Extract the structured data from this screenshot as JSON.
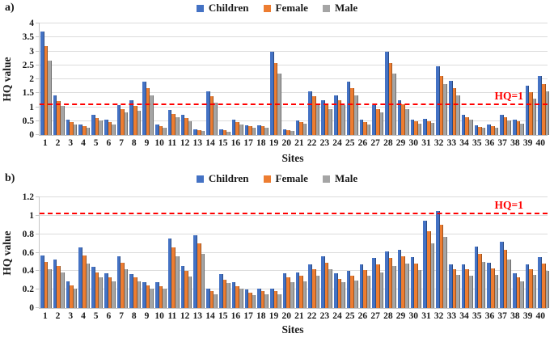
{
  "chart_data": [
    {
      "type": "bar",
      "title": "a)",
      "xlabel": "Sites",
      "ylabel": "HQ value",
      "ylim": [
        0,
        4
      ],
      "yticks": [
        "0",
        "0.5",
        "1",
        "1.5",
        "2",
        "2.5",
        "3",
        "3.5",
        "4"
      ],
      "grid": true,
      "legend_position": "top",
      "categories": [
        "1",
        "2",
        "3",
        "4",
        "5",
        "6",
        "7",
        "8",
        "9",
        "10",
        "11",
        "12",
        "13",
        "14",
        "15",
        "16",
        "17",
        "18",
        "19",
        "20",
        "21",
        "22",
        "23",
        "24",
        "25",
        "26",
        "27",
        "28",
        "29",
        "30",
        "31",
        "32",
        "33",
        "34",
        "35",
        "36",
        "37",
        "38",
        "39",
        "40"
      ],
      "series": [
        {
          "name": "Children",
          "color": "#4472C4",
          "values": [
            3.7,
            1.42,
            0.55,
            0.38,
            0.72,
            0.55,
            1.07,
            1.24,
            1.92,
            0.39,
            0.89,
            0.72,
            0.21,
            1.58,
            0.2,
            0.55,
            0.36,
            0.36,
            2.98,
            0.21,
            0.53,
            1.57,
            1.26,
            1.43,
            1.91,
            0.55,
            1.07,
            2.98,
            1.26,
            0.55,
            0.58,
            2.46,
            1.94,
            0.73,
            0.36,
            0.37,
            0.73,
            0.55,
            1.78,
            2.12
          ]
        },
        {
          "name": "Female",
          "color": "#ED7D31",
          "values": [
            3.18,
            1.22,
            0.46,
            0.32,
            0.61,
            0.46,
            0.92,
            1.05,
            1.67,
            0.32,
            0.76,
            0.61,
            0.17,
            1.38,
            0.17,
            0.47,
            0.31,
            0.31,
            2.59,
            0.17,
            0.47,
            1.38,
            1.1,
            1.24,
            1.67,
            0.46,
            0.92,
            2.59,
            1.1,
            0.49,
            0.5,
            2.12,
            1.67,
            0.63,
            0.3,
            0.31,
            0.63,
            0.48,
            1.53,
            1.84
          ]
        },
        {
          "name": "Male",
          "color": "#A5A5A5",
          "values": [
            2.68,
            1.05,
            0.39,
            0.27,
            0.51,
            0.39,
            0.8,
            0.88,
            1.43,
            0.27,
            0.63,
            0.5,
            0.14,
            1.17,
            0.13,
            0.39,
            0.26,
            0.25,
            2.2,
            0.14,
            0.41,
            1.14,
            0.92,
            1.07,
            1.43,
            0.39,
            0.8,
            2.21,
            0.92,
            0.42,
            0.44,
            1.82,
            1.41,
            0.55,
            0.26,
            0.26,
            0.53,
            0.42,
            1.31,
            1.57
          ]
        }
      ],
      "ref_line": {
        "label": "HQ=1",
        "value": 1,
        "color": "#ff0000"
      }
    },
    {
      "type": "bar",
      "title": "b)",
      "xlabel": "Sites",
      "ylabel": "HQ value",
      "ylim": [
        0,
        1.2
      ],
      "yticks": [
        "0",
        "0.2",
        "0.4",
        "0.6",
        "0.8",
        "1",
        "1.2"
      ],
      "grid": true,
      "legend_position": "top",
      "categories": [
        "1",
        "2",
        "3",
        "4",
        "5",
        "6",
        "7",
        "8",
        "9",
        "10",
        "11",
        "12",
        "13",
        "14",
        "15",
        "16",
        "17",
        "18",
        "19",
        "20",
        "21",
        "22",
        "23",
        "24",
        "25",
        "26",
        "27",
        "28",
        "29",
        "30",
        "31",
        "32",
        "33",
        "34",
        "35",
        "36",
        "37",
        "38",
        "39",
        "40"
      ],
      "series": [
        {
          "name": "Children",
          "color": "#4472C4",
          "values": [
            0.57,
            0.53,
            0.29,
            0.66,
            0.45,
            0.38,
            0.56,
            0.37,
            0.28,
            0.28,
            0.75,
            0.46,
            0.79,
            0.21,
            0.37,
            0.28,
            0.2,
            0.21,
            0.21,
            0.38,
            0.39,
            0.47,
            0.56,
            0.38,
            0.4,
            0.47,
            0.54,
            0.61,
            0.63,
            0.55,
            0.95,
            1.05,
            0.47,
            0.47,
            0.67,
            0.49,
            0.72,
            0.38,
            0.47,
            0.55
          ]
        },
        {
          "name": "Female",
          "color": "#ED7D31",
          "values": [
            0.5,
            0.46,
            0.25,
            0.57,
            0.39,
            0.33,
            0.49,
            0.33,
            0.25,
            0.24,
            0.66,
            0.4,
            0.7,
            0.18,
            0.31,
            0.24,
            0.17,
            0.18,
            0.18,
            0.33,
            0.35,
            0.42,
            0.49,
            0.32,
            0.35,
            0.41,
            0.47,
            0.54,
            0.56,
            0.48,
            0.83,
            0.9,
            0.42,
            0.42,
            0.59,
            0.43,
            0.63,
            0.33,
            0.42,
            0.48
          ]
        },
        {
          "name": "Male",
          "color": "#A5A5A5",
          "values": [
            0.42,
            0.39,
            0.21,
            0.48,
            0.33,
            0.29,
            0.42,
            0.29,
            0.21,
            0.21,
            0.56,
            0.34,
            0.59,
            0.15,
            0.27,
            0.21,
            0.14,
            0.15,
            0.15,
            0.28,
            0.29,
            0.35,
            0.42,
            0.28,
            0.3,
            0.35,
            0.39,
            0.46,
            0.48,
            0.41,
            0.7,
            0.77,
            0.36,
            0.35,
            0.5,
            0.36,
            0.53,
            0.29,
            0.36,
            0.4
          ]
        }
      ],
      "ref_line": {
        "label": "HQ=1",
        "value": 1,
        "color": "#ff0000"
      }
    }
  ]
}
